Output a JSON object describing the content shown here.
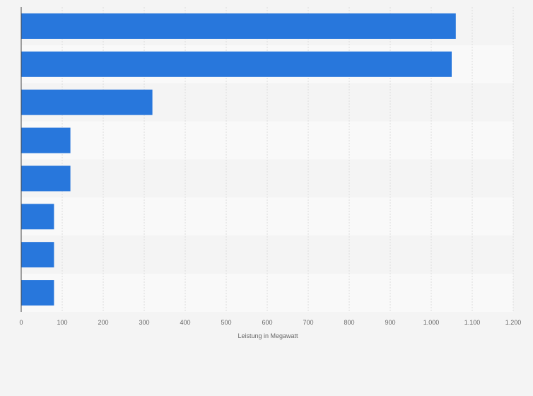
{
  "chart_data": {
    "type": "bar",
    "orientation": "horizontal",
    "categories": [
      "",
      "",
      "",
      "",
      "",
      "",
      "",
      ""
    ],
    "values": [
      1060,
      1050,
      320,
      120,
      120,
      80,
      80,
      80
    ],
    "xlabel": "Leistung in Megawatt",
    "ylabel": "",
    "xlim": [
      0,
      1200
    ],
    "xticks": [
      0,
      100,
      200,
      300,
      400,
      500,
      600,
      700,
      800,
      900,
      1000,
      1100,
      1200
    ],
    "xtick_labels": [
      "0",
      "100",
      "200",
      "300",
      "400",
      "500",
      "600",
      "700",
      "800",
      "900",
      "1.000",
      "1.100",
      "1.200"
    ],
    "grid": true,
    "legend": "none",
    "colors": {
      "bar": "#2877dc",
      "band_dark": "#f4f4f4",
      "band_light": "#f9f9f9",
      "grid": "#dcdcdc",
      "axis": "#444444"
    }
  }
}
